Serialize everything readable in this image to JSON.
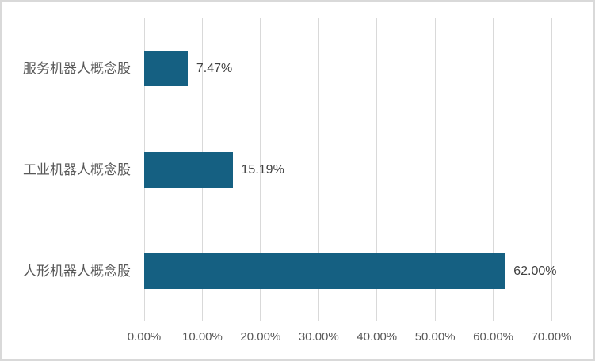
{
  "chart": {
    "background_color": "#FFFFFF",
    "border_color": "#D9D9D9",
    "gridline_color": "#D9D9D9",
    "bar_color": "#156082",
    "category_label_color": "#595959",
    "value_label_color": "#404040",
    "axis_label_color": "#595959"
  },
  "chart_data": {
    "type": "bar",
    "orientation": "horizontal",
    "title": "",
    "xlabel": "",
    "ylabel": "",
    "categories": [
      "服务机器人概念股",
      "工业机器人概念股",
      "人形机器人概念股"
    ],
    "values": [
      7.47,
      15.19,
      62.0
    ],
    "value_labels": [
      "7.47%",
      "15.19%",
      "62.00%"
    ],
    "x_tick_values": [
      0,
      10,
      20,
      30,
      40,
      50,
      60,
      70
    ],
    "x_tick_labels": [
      "0.00%",
      "10.00%",
      "20.00%",
      "30.00%",
      "40.00%",
      "50.00%",
      "60.00%",
      "70.00%"
    ],
    "xlim": [
      0,
      70
    ],
    "grid": "vertical",
    "legend": "none"
  }
}
